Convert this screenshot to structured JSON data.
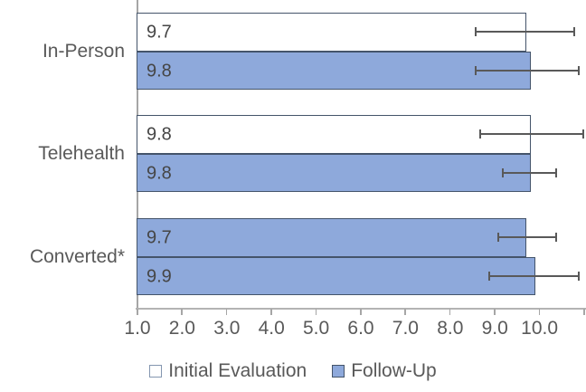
{
  "chart_data": {
    "type": "bar",
    "orientation": "horizontal",
    "title": "",
    "categories": [
      "In-Person",
      "Telehealth",
      "Converted*"
    ],
    "series": [
      {
        "name": "Initial Evaluation",
        "values": [
          9.7,
          9.8,
          9.7
        ],
        "data_labels": [
          "9.7",
          "9.8",
          "9.7"
        ],
        "point_fills": [
          "#FFFFFF",
          "#FFFFFF",
          "#8EA9DB"
        ],
        "error_low": [
          8.6,
          8.7,
          9.1
        ],
        "error_high": [
          10.8,
          11.0,
          10.4
        ]
      },
      {
        "name": "Follow-Up",
        "values": [
          9.8,
          9.8,
          9.9
        ],
        "data_labels": [
          "9.8",
          "9.8",
          "9.9"
        ],
        "point_fills": [
          "#8EA9DB",
          "#8EA9DB",
          "#8EA9DB"
        ],
        "error_low": [
          8.6,
          9.2,
          8.9
        ],
        "error_high": [
          10.9,
          10.4,
          10.9
        ]
      }
    ],
    "x_axis": {
      "min": 1.0,
      "max": 11.0,
      "tick_values": [
        1,
        2,
        3,
        4,
        5,
        6,
        7,
        8,
        9,
        10
      ],
      "tick_labels": [
        "1.0",
        "2.0",
        "3.0",
        "4.0",
        "5.0",
        "6.0",
        "7.0",
        "8.0",
        "9.0",
        "10.0"
      ],
      "tick_marks": [
        1,
        2,
        3,
        4,
        5,
        6,
        7,
        8,
        9,
        10,
        11
      ]
    },
    "legend": {
      "position": "bottom",
      "entries": [
        {
          "label": "Initial Evaluation",
          "swatch_fill": "#FFFFFF"
        },
        {
          "label": "Follow-Up",
          "swatch_fill": "#8EA9DB"
        }
      ]
    },
    "colors": {
      "blue_fill": "#8EA9DB",
      "bar_border": "#44546A",
      "error_bar": "#595959",
      "axis_line": "#A6A6A6",
      "text": "#595959"
    },
    "grid": false,
    "ylim": [
      1.0,
      11.0
    ]
  }
}
